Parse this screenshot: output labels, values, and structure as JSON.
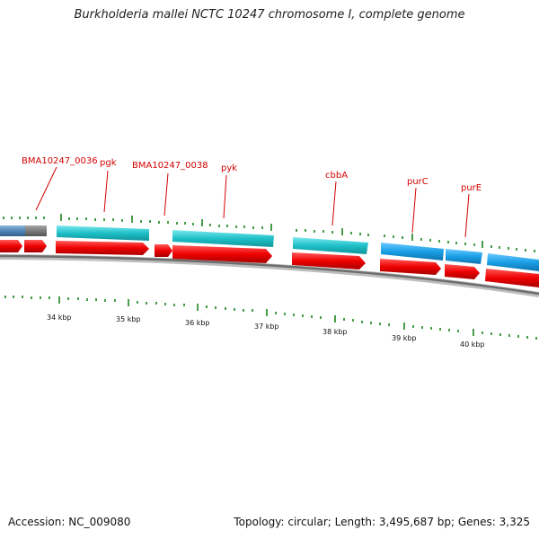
{
  "title": "Burkholderia mallei NCTC 10247 chromosome I, complete genome",
  "footer": {
    "accession": "Accession: NC_009080",
    "summary": "Topology: circular; Length: 3,495,687 bp; Genes: 3,325"
  },
  "colors": {
    "label": "#d40000",
    "cds_forward_cyan": "#1fc0c8",
    "cds_forward_blue": "#1a9fe6",
    "cds_reverse_red": "#ee0000",
    "gene_gray": "#7a7a7a",
    "backbone": "#8a8a8a",
    "tick": "#0a7a0a"
  },
  "gene_labels": [
    {
      "name": "BMA10247_0036"
    },
    {
      "name": "pgk"
    },
    {
      "name": "BMA10247_0038"
    },
    {
      "name": "pyk"
    },
    {
      "name": "cbbA"
    },
    {
      "name": "purC"
    },
    {
      "name": "purE"
    }
  ],
  "kbp_labels": [
    "34 kbp",
    "35 kbp",
    "36 kbp",
    "37 kbp",
    "38 kbp",
    "39 kbp",
    "40 kbp"
  ]
}
